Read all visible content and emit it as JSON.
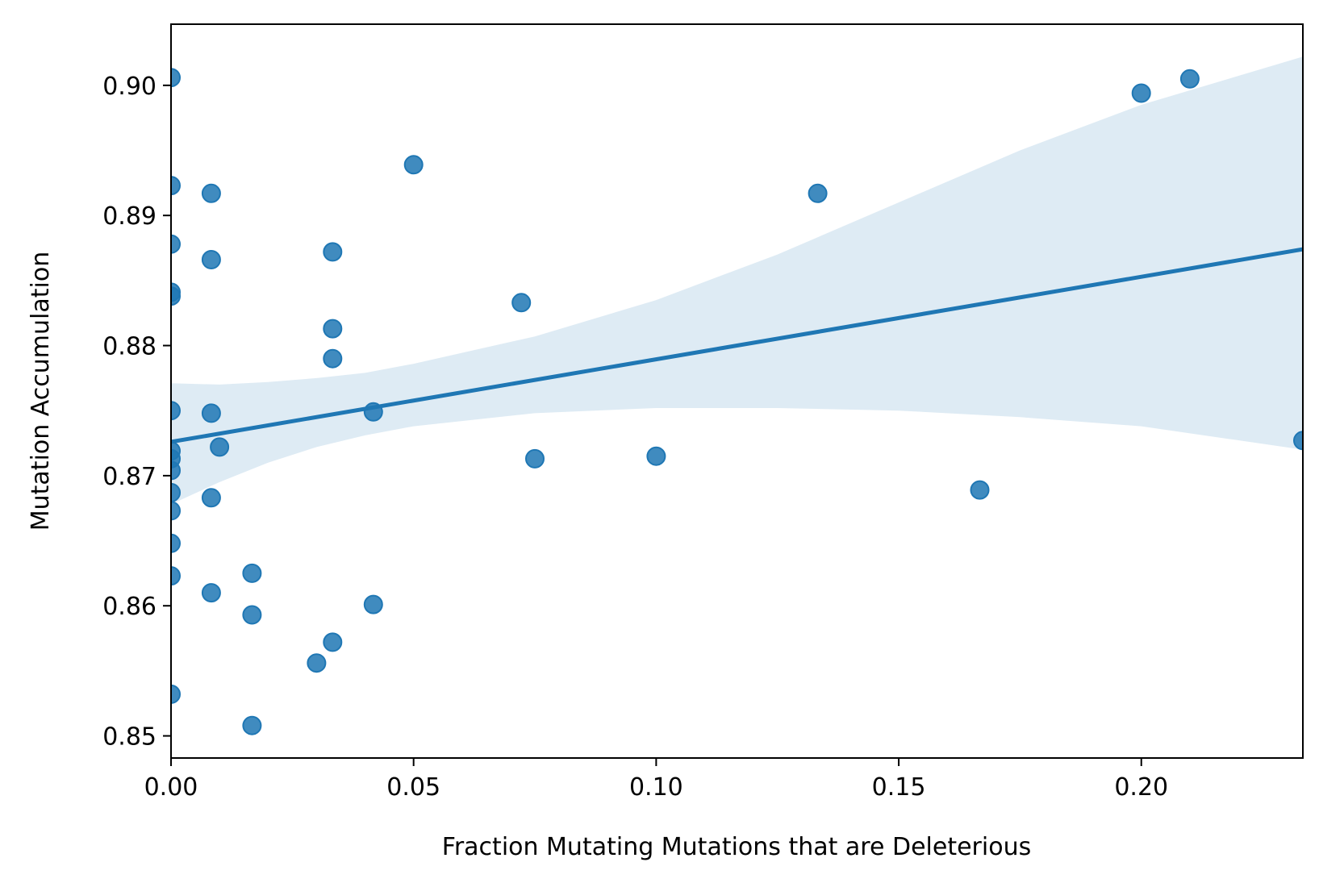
{
  "chart_data": {
    "type": "scatter",
    "title": "",
    "xlabel": "Fraction Mutating Mutations that are Deleterious",
    "ylabel": "Mutation Accumulation",
    "xlim": [
      0.0,
      0.2333
    ],
    "ylim": [
      0.8483,
      0.9047
    ],
    "xticks": [
      0.0,
      0.05,
      0.1,
      0.15,
      0.2
    ],
    "xtick_labels": [
      "0.00",
      "0.05",
      "0.10",
      "0.15",
      "0.20"
    ],
    "yticks": [
      0.85,
      0.86,
      0.87,
      0.88,
      0.89,
      0.9
    ],
    "ytick_labels": [
      "0.85",
      "0.86",
      "0.87",
      "0.88",
      "0.89",
      "0.90"
    ],
    "grid": false,
    "colors": {
      "points": "#1f77b4",
      "line": "#1f77b4",
      "band": "#1f77b4"
    },
    "points": [
      {
        "x": 0.0,
        "y": 0.9006
      },
      {
        "x": 0.0,
        "y": 0.8923
      },
      {
        "x": 0.0,
        "y": 0.8878
      },
      {
        "x": 0.0,
        "y": 0.8841
      },
      {
        "x": 0.0,
        "y": 0.8838
      },
      {
        "x": 0.0,
        "y": 0.875
      },
      {
        "x": 0.0,
        "y": 0.8719
      },
      {
        "x": 0.0,
        "y": 0.8713
      },
      {
        "x": 0.0,
        "y": 0.8704
      },
      {
        "x": 0.0,
        "y": 0.8687
      },
      {
        "x": 0.0,
        "y": 0.8673
      },
      {
        "x": 0.0,
        "y": 0.8648
      },
      {
        "x": 0.0,
        "y": 0.8623
      },
      {
        "x": 0.0,
        "y": 0.8532
      },
      {
        "x": 0.0083,
        "y": 0.8917
      },
      {
        "x": 0.0083,
        "y": 0.8866
      },
      {
        "x": 0.0083,
        "y": 0.8748
      },
      {
        "x": 0.0083,
        "y": 0.8683
      },
      {
        "x": 0.0083,
        "y": 0.861
      },
      {
        "x": 0.01,
        "y": 0.8722
      },
      {
        "x": 0.0167,
        "y": 0.8625
      },
      {
        "x": 0.0167,
        "y": 0.8593
      },
      {
        "x": 0.0167,
        "y": 0.8508
      },
      {
        "x": 0.03,
        "y": 0.8556
      },
      {
        "x": 0.0333,
        "y": 0.8872
      },
      {
        "x": 0.0333,
        "y": 0.8813
      },
      {
        "x": 0.0333,
        "y": 0.879
      },
      {
        "x": 0.0333,
        "y": 0.8572
      },
      {
        "x": 0.0417,
        "y": 0.8749
      },
      {
        "x": 0.0417,
        "y": 0.8601
      },
      {
        "x": 0.05,
        "y": 0.8939
      },
      {
        "x": 0.0722,
        "y": 0.8833
      },
      {
        "x": 0.075,
        "y": 0.8713
      },
      {
        "x": 0.1,
        "y": 0.8715
      },
      {
        "x": 0.1333,
        "y": 0.8917
      },
      {
        "x": 0.1667,
        "y": 0.8689
      },
      {
        "x": 0.2,
        "y": 0.8994
      },
      {
        "x": 0.21,
        "y": 0.9005
      },
      {
        "x": 0.2333,
        "y": 0.8727
      }
    ],
    "regression_line": {
      "x": [
        0.0,
        0.2333
      ],
      "y": [
        0.8726,
        0.8874
      ]
    },
    "confidence_band": {
      "x": [
        0.0,
        0.01,
        0.02,
        0.03,
        0.04,
        0.05,
        0.075,
        0.1,
        0.125,
        0.15,
        0.175,
        0.2,
        0.2333
      ],
      "lower": [
        0.8678,
        0.8695,
        0.871,
        0.8722,
        0.8731,
        0.8738,
        0.8748,
        0.8752,
        0.8752,
        0.875,
        0.8745,
        0.8738,
        0.872
      ],
      "upper": [
        0.8771,
        0.877,
        0.8772,
        0.8775,
        0.8779,
        0.8786,
        0.8807,
        0.8835,
        0.887,
        0.891,
        0.895,
        0.8985,
        0.9022
      ]
    }
  }
}
